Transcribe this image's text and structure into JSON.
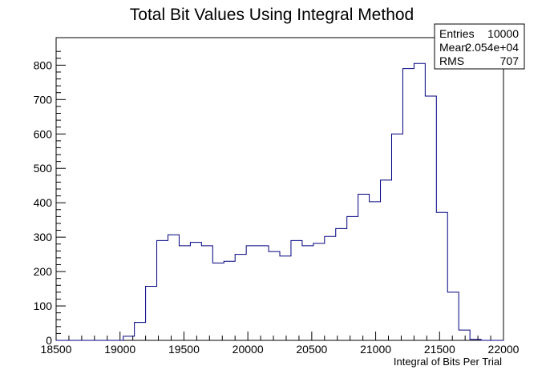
{
  "chart_data": {
    "type": "bar",
    "title": "Total Bit Values Using Integral Method",
    "xlabel": "Integral of Bits Per Trial",
    "ylabel": "",
    "xlim": [
      18500,
      22000
    ],
    "ylim": [
      0,
      880
    ],
    "x_tick_labels": [
      "18500",
      "19000",
      "19500",
      "20000",
      "20500",
      "21000",
      "21500",
      "22000"
    ],
    "y_tick_labels": [
      "0",
      "100",
      "200",
      "300",
      "400",
      "500",
      "600",
      "700",
      "800"
    ],
    "bin_width": 87.5,
    "bin_edges_start": 18500,
    "values": [
      0,
      0,
      0,
      0,
      0,
      0,
      12,
      52,
      157,
      290,
      307,
      275,
      285,
      275,
      225,
      230,
      250,
      275,
      275,
      258,
      245,
      290,
      275,
      282,
      302,
      325,
      360,
      425,
      403,
      466,
      600,
      790,
      805,
      710,
      372,
      140,
      30,
      3,
      0,
      0
    ],
    "line_color": "#000080",
    "grid": false,
    "stats": {
      "rows": [
        {
          "label": "Entries",
          "value": "10000"
        },
        {
          "label": "Mean",
          "value": "2.054e+04"
        },
        {
          "label": "RMS",
          "value": "707"
        }
      ],
      "placement": "top-right"
    }
  }
}
